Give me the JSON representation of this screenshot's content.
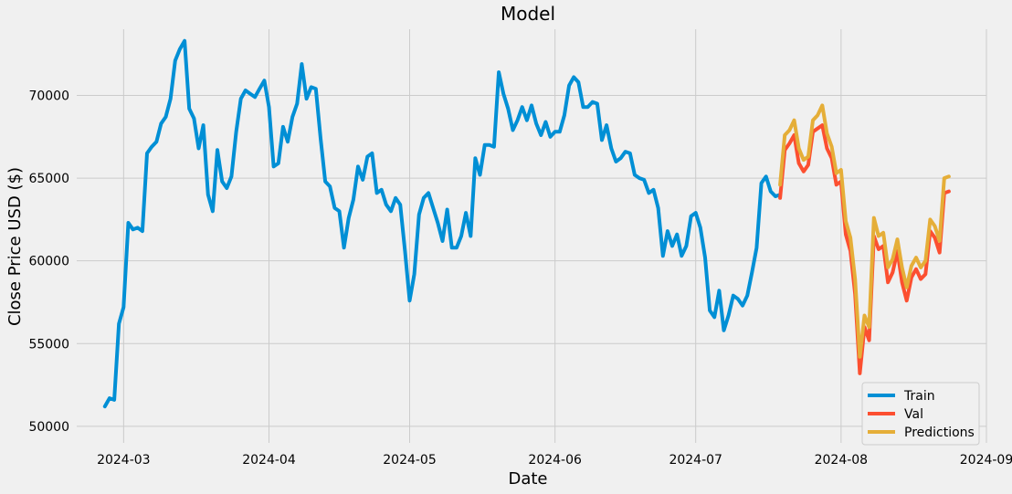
{
  "chart_data": {
    "type": "line",
    "title": "Model",
    "xlabel": "Date",
    "ylabel": "Close Price USD ($)",
    "xlim": [
      "2024-02-20",
      "2024-09-01"
    ],
    "ylim": [
      49000,
      74000
    ],
    "x_ticks": [
      "2024-03",
      "2024-04",
      "2024-05",
      "2024-06",
      "2024-07",
      "2024-08",
      "2024-09"
    ],
    "y_ticks": [
      50000,
      55000,
      60000,
      65000,
      70000
    ],
    "grid": true,
    "legend_position": "lower-right",
    "series": [
      {
        "name": "Train",
        "color": "#008fd5",
        "points": [
          [
            "2024-02-26",
            51200
          ],
          [
            "2024-02-27",
            51700
          ],
          [
            "2024-02-28",
            51600
          ],
          [
            "2024-02-29",
            56200
          ],
          [
            "2024-03-01",
            57200
          ],
          [
            "2024-03-02",
            62300
          ],
          [
            "2024-03-03",
            61900
          ],
          [
            "2024-03-04",
            62000
          ],
          [
            "2024-03-05",
            61800
          ],
          [
            "2024-03-06",
            66500
          ],
          [
            "2024-03-07",
            66900
          ],
          [
            "2024-03-08",
            67200
          ],
          [
            "2024-03-09",
            68300
          ],
          [
            "2024-03-10",
            68700
          ],
          [
            "2024-03-11",
            69800
          ],
          [
            "2024-03-12",
            72100
          ],
          [
            "2024-03-13",
            72800
          ],
          [
            "2024-03-14",
            73300
          ],
          [
            "2024-03-15",
            69200
          ],
          [
            "2024-03-16",
            68600
          ],
          [
            "2024-03-17",
            66800
          ],
          [
            "2024-03-18",
            68200
          ],
          [
            "2024-03-19",
            64000
          ],
          [
            "2024-03-20",
            63000
          ],
          [
            "2024-03-21",
            66700
          ],
          [
            "2024-03-22",
            64800
          ],
          [
            "2024-03-23",
            64400
          ],
          [
            "2024-03-24",
            65100
          ],
          [
            "2024-03-25",
            67800
          ],
          [
            "2024-03-26",
            69800
          ],
          [
            "2024-03-27",
            70300
          ],
          [
            "2024-03-28",
            70100
          ],
          [
            "2024-03-29",
            69900
          ],
          [
            "2024-03-30",
            70400
          ],
          [
            "2024-03-31",
            70900
          ],
          [
            "2024-04-01",
            69300
          ],
          [
            "2024-04-02",
            65700
          ],
          [
            "2024-04-03",
            65900
          ],
          [
            "2024-04-04",
            68100
          ],
          [
            "2024-04-05",
            67200
          ],
          [
            "2024-04-06",
            68700
          ],
          [
            "2024-04-07",
            69500
          ],
          [
            "2024-04-08",
            71900
          ],
          [
            "2024-04-09",
            69800
          ],
          [
            "2024-04-10",
            70500
          ],
          [
            "2024-04-11",
            70400
          ],
          [
            "2024-04-12",
            67400
          ],
          [
            "2024-04-13",
            64800
          ],
          [
            "2024-04-14",
            64500
          ],
          [
            "2024-04-15",
            63200
          ],
          [
            "2024-04-16",
            63000
          ],
          [
            "2024-04-17",
            60800
          ],
          [
            "2024-04-18",
            62600
          ],
          [
            "2024-04-19",
            63700
          ],
          [
            "2024-04-20",
            65700
          ],
          [
            "2024-04-21",
            64900
          ],
          [
            "2024-04-22",
            66300
          ],
          [
            "2024-04-23",
            66500
          ],
          [
            "2024-04-24",
            64100
          ],
          [
            "2024-04-25",
            64300
          ],
          [
            "2024-04-26",
            63400
          ],
          [
            "2024-04-27",
            63000
          ],
          [
            "2024-04-28",
            63800
          ],
          [
            "2024-04-29",
            63400
          ],
          [
            "2024-04-30",
            60600
          ],
          [
            "2024-05-01",
            57600
          ],
          [
            "2024-05-02",
            59200
          ],
          [
            "2024-05-03",
            62800
          ],
          [
            "2024-05-04",
            63800
          ],
          [
            "2024-05-05",
            64100
          ],
          [
            "2024-05-06",
            63200
          ],
          [
            "2024-05-07",
            62300
          ],
          [
            "2024-05-08",
            61200
          ],
          [
            "2024-05-09",
            63100
          ],
          [
            "2024-05-10",
            60800
          ],
          [
            "2024-05-11",
            60800
          ],
          [
            "2024-05-12",
            61500
          ],
          [
            "2024-05-13",
            62900
          ],
          [
            "2024-05-14",
            61500
          ],
          [
            "2024-05-15",
            66200
          ],
          [
            "2024-05-16",
            65200
          ],
          [
            "2024-05-17",
            67000
          ],
          [
            "2024-05-18",
            67000
          ],
          [
            "2024-05-19",
            66900
          ],
          [
            "2024-05-20",
            71400
          ],
          [
            "2024-05-21",
            70100
          ],
          [
            "2024-05-22",
            69200
          ],
          [
            "2024-05-23",
            67900
          ],
          [
            "2024-05-24",
            68500
          ],
          [
            "2024-05-25",
            69300
          ],
          [
            "2024-05-26",
            68500
          ],
          [
            "2024-05-27",
            69400
          ],
          [
            "2024-05-28",
            68300
          ],
          [
            "2024-05-29",
            67600
          ],
          [
            "2024-05-30",
            68400
          ],
          [
            "2024-05-31",
            67500
          ],
          [
            "2024-06-01",
            67800
          ],
          [
            "2024-06-02",
            67800
          ],
          [
            "2024-06-03",
            68800
          ],
          [
            "2024-06-04",
            70600
          ],
          [
            "2024-06-05",
            71100
          ],
          [
            "2024-06-06",
            70800
          ],
          [
            "2024-06-07",
            69300
          ],
          [
            "2024-06-08",
            69300
          ],
          [
            "2024-06-09",
            69600
          ],
          [
            "2024-06-10",
            69500
          ],
          [
            "2024-06-11",
            67300
          ],
          [
            "2024-06-12",
            68200
          ],
          [
            "2024-06-13",
            66800
          ],
          [
            "2024-06-14",
            66000
          ],
          [
            "2024-06-15",
            66200
          ],
          [
            "2024-06-16",
            66600
          ],
          [
            "2024-06-17",
            66500
          ],
          [
            "2024-06-18",
            65200
          ],
          [
            "2024-06-19",
            65000
          ],
          [
            "2024-06-20",
            64900
          ],
          [
            "2024-06-21",
            64100
          ],
          [
            "2024-06-22",
            64300
          ],
          [
            "2024-06-23",
            63200
          ],
          [
            "2024-06-24",
            60300
          ],
          [
            "2024-06-25",
            61800
          ],
          [
            "2024-06-26",
            60900
          ],
          [
            "2024-06-27",
            61600
          ],
          [
            "2024-06-28",
            60300
          ],
          [
            "2024-06-29",
            60900
          ],
          [
            "2024-06-30",
            62700
          ],
          [
            "2024-07-01",
            62900
          ],
          [
            "2024-07-02",
            62000
          ],
          [
            "2024-07-03",
            60200
          ],
          [
            "2024-07-04",
            57000
          ],
          [
            "2024-07-05",
            56600
          ],
          [
            "2024-07-06",
            58200
          ],
          [
            "2024-07-07",
            55800
          ],
          [
            "2024-07-08",
            56700
          ],
          [
            "2024-07-09",
            57900
          ],
          [
            "2024-07-10",
            57700
          ],
          [
            "2024-07-11",
            57300
          ],
          [
            "2024-07-12",
            57900
          ],
          [
            "2024-07-13",
            59300
          ],
          [
            "2024-07-14",
            60800
          ],
          [
            "2024-07-15",
            64700
          ],
          [
            "2024-07-16",
            65100
          ],
          [
            "2024-07-17",
            64200
          ],
          [
            "2024-07-18",
            63900
          ],
          [
            "2024-07-19",
            64000
          ]
        ]
      },
      {
        "name": "Val",
        "color": "#fc4f30",
        "points": [
          [
            "2024-07-19",
            63800
          ],
          [
            "2024-07-20",
            66700
          ],
          [
            "2024-07-21",
            67100
          ],
          [
            "2024-07-22",
            67600
          ],
          [
            "2024-07-23",
            65900
          ],
          [
            "2024-07-24",
            65400
          ],
          [
            "2024-07-25",
            65800
          ],
          [
            "2024-07-26",
            67800
          ],
          [
            "2024-07-27",
            68000
          ],
          [
            "2024-07-28",
            68200
          ],
          [
            "2024-07-29",
            66800
          ],
          [
            "2024-07-30",
            66200
          ],
          [
            "2024-07-31",
            64600
          ],
          [
            "2024-08-01",
            64800
          ],
          [
            "2024-08-02",
            61600
          ],
          [
            "2024-08-03",
            60600
          ],
          [
            "2024-08-04",
            58000
          ],
          [
            "2024-08-05",
            53200
          ],
          [
            "2024-08-06",
            56000
          ],
          [
            "2024-08-07",
            55200
          ],
          [
            "2024-08-08",
            61500
          ],
          [
            "2024-08-09",
            60700
          ],
          [
            "2024-08-10",
            60900
          ],
          [
            "2024-08-11",
            58700
          ],
          [
            "2024-08-12",
            59300
          ],
          [
            "2024-08-13",
            60600
          ],
          [
            "2024-08-14",
            58700
          ],
          [
            "2024-08-15",
            57600
          ],
          [
            "2024-08-16",
            59000
          ],
          [
            "2024-08-17",
            59500
          ],
          [
            "2024-08-18",
            58900
          ],
          [
            "2024-08-19",
            59200
          ],
          [
            "2024-08-20",
            61800
          ],
          [
            "2024-08-21",
            61400
          ],
          [
            "2024-08-22",
            60500
          ],
          [
            "2024-08-23",
            64100
          ],
          [
            "2024-08-24",
            64200
          ]
        ]
      },
      {
        "name": "Predictions",
        "color": "#e5ae38",
        "points": [
          [
            "2024-07-19",
            64600
          ],
          [
            "2024-07-20",
            67600
          ],
          [
            "2024-07-21",
            67900
          ],
          [
            "2024-07-22",
            68500
          ],
          [
            "2024-07-23",
            66800
          ],
          [
            "2024-07-24",
            66100
          ],
          [
            "2024-07-25",
            66300
          ],
          [
            "2024-07-26",
            68500
          ],
          [
            "2024-07-27",
            68800
          ],
          [
            "2024-07-28",
            69400
          ],
          [
            "2024-07-29",
            67700
          ],
          [
            "2024-07-30",
            66900
          ],
          [
            "2024-07-31",
            65300
          ],
          [
            "2024-08-01",
            65500
          ],
          [
            "2024-08-02",
            62400
          ],
          [
            "2024-08-03",
            61400
          ],
          [
            "2024-08-04",
            58900
          ],
          [
            "2024-08-05",
            54200
          ],
          [
            "2024-08-06",
            56700
          ],
          [
            "2024-08-07",
            56000
          ],
          [
            "2024-08-08",
            62600
          ],
          [
            "2024-08-09",
            61500
          ],
          [
            "2024-08-10",
            61700
          ],
          [
            "2024-08-11",
            59600
          ],
          [
            "2024-08-12",
            60100
          ],
          [
            "2024-08-13",
            61300
          ],
          [
            "2024-08-14",
            59600
          ],
          [
            "2024-08-15",
            58400
          ],
          [
            "2024-08-16",
            59700
          ],
          [
            "2024-08-17",
            60200
          ],
          [
            "2024-08-18",
            59600
          ],
          [
            "2024-08-19",
            60000
          ],
          [
            "2024-08-20",
            62500
          ],
          [
            "2024-08-21",
            62100
          ],
          [
            "2024-08-22",
            61200
          ],
          [
            "2024-08-23",
            65000
          ],
          [
            "2024-08-24",
            65100
          ]
        ]
      }
    ]
  }
}
